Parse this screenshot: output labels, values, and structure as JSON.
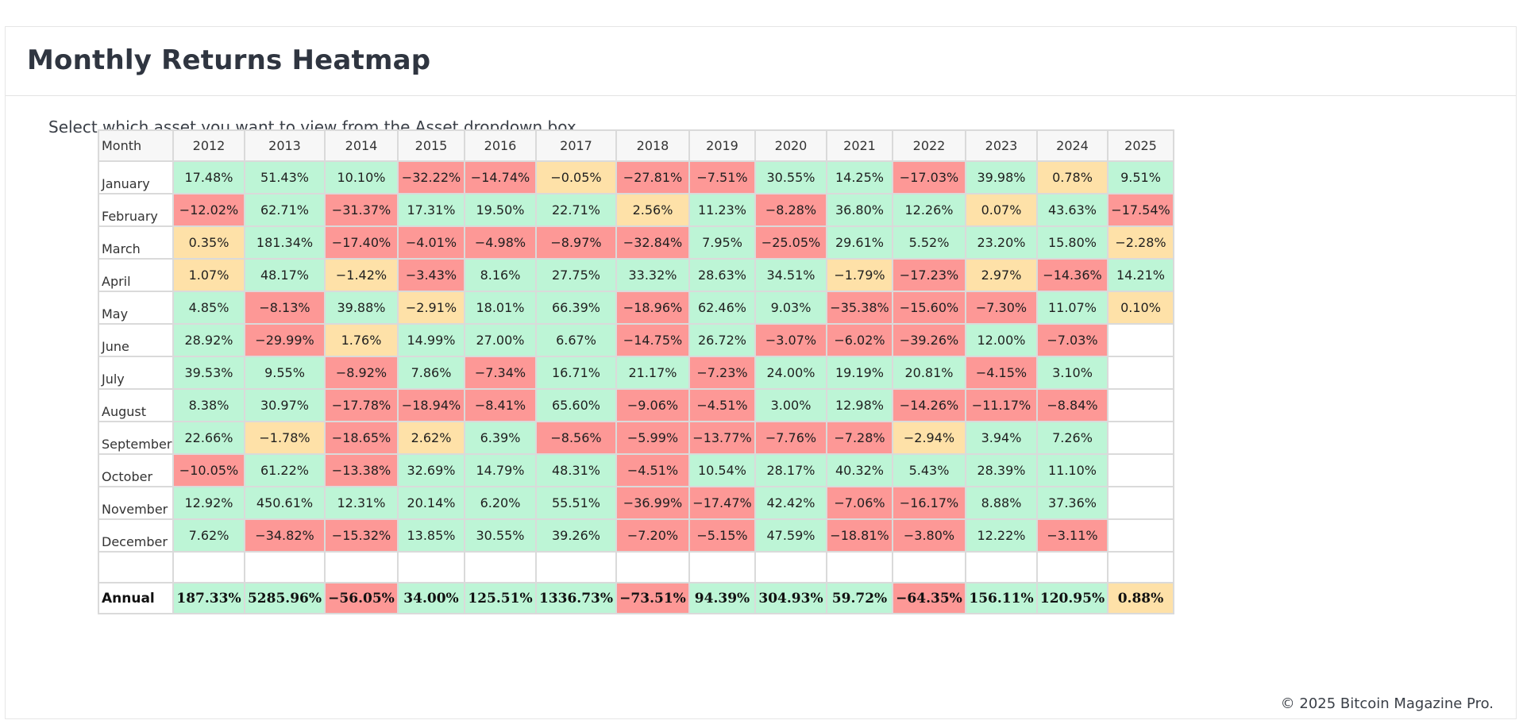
{
  "page": {
    "title": "Monthly Returns Heatmap",
    "instructions": "Select which asset you want to view from the Asset dropdown box.",
    "footer": "© 2025 Bitcoin Magazine Pro."
  },
  "colors": {
    "positive": "#bdf5d6",
    "negative": "#fd9896",
    "near_zero": "#fee1a8",
    "empty": "#ffffff",
    "grid_border": "#dadada"
  },
  "chart_data": {
    "type": "heatmap",
    "row_header": "Month",
    "years": [
      "2012",
      "2013",
      "2014",
      "2015",
      "2016",
      "2017",
      "2018",
      "2019",
      "2020",
      "2021",
      "2022",
      "2023",
      "2024",
      "2025"
    ],
    "rows": [
      {
        "month": "January",
        "values": [
          "17.48%",
          "51.43%",
          "10.10%",
          "−32.22%",
          "−14.74%",
          "−0.05%",
          "−27.81%",
          "−7.51%",
          "30.55%",
          "14.25%",
          "−17.03%",
          "39.98%",
          "0.78%",
          "9.51%"
        ],
        "levels": [
          "pos",
          "pos",
          "pos",
          "neg",
          "neg",
          "flat",
          "neg",
          "neg",
          "pos",
          "pos",
          "neg",
          "pos",
          "flat",
          "pos"
        ]
      },
      {
        "month": "February",
        "values": [
          "−12.02%",
          "62.71%",
          "−31.37%",
          "17.31%",
          "19.50%",
          "22.71%",
          "2.56%",
          "11.23%",
          "−8.28%",
          "36.80%",
          "12.26%",
          "0.07%",
          "43.63%",
          "−17.54%"
        ],
        "levels": [
          "neg",
          "pos",
          "neg",
          "pos",
          "pos",
          "pos",
          "flat",
          "pos",
          "neg",
          "pos",
          "pos",
          "flat",
          "pos",
          "neg"
        ]
      },
      {
        "month": "March",
        "values": [
          "0.35%",
          "181.34%",
          "−17.40%",
          "−4.01%",
          "−4.98%",
          "−8.97%",
          "−32.84%",
          "7.95%",
          "−25.05%",
          "29.61%",
          "5.52%",
          "23.20%",
          "15.80%",
          "−2.28%"
        ],
        "levels": [
          "flat",
          "pos",
          "neg",
          "neg",
          "neg",
          "neg",
          "neg",
          "pos",
          "neg",
          "pos",
          "pos",
          "pos",
          "pos",
          "flat"
        ]
      },
      {
        "month": "April",
        "values": [
          "1.07%",
          "48.17%",
          "−1.42%",
          "−3.43%",
          "8.16%",
          "27.75%",
          "33.32%",
          "28.63%",
          "34.51%",
          "−1.79%",
          "−17.23%",
          "2.97%",
          "−14.36%",
          "14.21%"
        ],
        "levels": [
          "flat",
          "pos",
          "flat",
          "neg",
          "pos",
          "pos",
          "pos",
          "pos",
          "pos",
          "flat",
          "neg",
          "flat",
          "neg",
          "pos"
        ]
      },
      {
        "month": "May",
        "values": [
          "4.85%",
          "−8.13%",
          "39.88%",
          "−2.91%",
          "18.01%",
          "66.39%",
          "−18.96%",
          "62.46%",
          "9.03%",
          "−35.38%",
          "−15.60%",
          "−7.30%",
          "11.07%",
          "0.10%"
        ],
        "levels": [
          "pos",
          "neg",
          "pos",
          "flat",
          "pos",
          "pos",
          "neg",
          "pos",
          "pos",
          "neg",
          "neg",
          "neg",
          "pos",
          "flat"
        ]
      },
      {
        "month": "June",
        "values": [
          "28.92%",
          "−29.99%",
          "1.76%",
          "14.99%",
          "27.00%",
          "6.67%",
          "−14.75%",
          "26.72%",
          "−3.07%",
          "−6.02%",
          "−39.26%",
          "12.00%",
          "−7.03%",
          ""
        ],
        "levels": [
          "pos",
          "neg",
          "flat",
          "pos",
          "pos",
          "pos",
          "neg",
          "pos",
          "neg",
          "neg",
          "neg",
          "pos",
          "neg",
          "empty"
        ]
      },
      {
        "month": "July",
        "values": [
          "39.53%",
          "9.55%",
          "−8.92%",
          "7.86%",
          "−7.34%",
          "16.71%",
          "21.17%",
          "−7.23%",
          "24.00%",
          "19.19%",
          "20.81%",
          "−4.15%",
          "3.10%",
          ""
        ],
        "levels": [
          "pos",
          "pos",
          "neg",
          "pos",
          "neg",
          "pos",
          "pos",
          "neg",
          "pos",
          "pos",
          "pos",
          "neg",
          "pos",
          "empty"
        ]
      },
      {
        "month": "August",
        "values": [
          "8.38%",
          "30.97%",
          "−17.78%",
          "−18.94%",
          "−8.41%",
          "65.60%",
          "−9.06%",
          "−4.51%",
          "3.00%",
          "12.98%",
          "−14.26%",
          "−11.17%",
          "−8.84%",
          ""
        ],
        "levels": [
          "pos",
          "pos",
          "neg",
          "neg",
          "neg",
          "pos",
          "neg",
          "neg",
          "pos",
          "pos",
          "neg",
          "neg",
          "neg",
          "empty"
        ]
      },
      {
        "month": "September",
        "values": [
          "22.66%",
          "−1.78%",
          "−18.65%",
          "2.62%",
          "6.39%",
          "−8.56%",
          "−5.99%",
          "−13.77%",
          "−7.76%",
          "−7.28%",
          "−2.94%",
          "3.94%",
          "7.26%",
          ""
        ],
        "levels": [
          "pos",
          "flat",
          "neg",
          "flat",
          "pos",
          "neg",
          "neg",
          "neg",
          "neg",
          "neg",
          "flat",
          "pos",
          "pos",
          "empty"
        ]
      },
      {
        "month": "October",
        "values": [
          "−10.05%",
          "61.22%",
          "−13.38%",
          "32.69%",
          "14.79%",
          "48.31%",
          "−4.51%",
          "10.54%",
          "28.17%",
          "40.32%",
          "5.43%",
          "28.39%",
          "11.10%",
          ""
        ],
        "levels": [
          "neg",
          "pos",
          "neg",
          "pos",
          "pos",
          "pos",
          "neg",
          "pos",
          "pos",
          "pos",
          "pos",
          "pos",
          "pos",
          "empty"
        ]
      },
      {
        "month": "November",
        "values": [
          "12.92%",
          "450.61%",
          "12.31%",
          "20.14%",
          "6.20%",
          "55.51%",
          "−36.99%",
          "−17.47%",
          "42.42%",
          "−7.06%",
          "−16.17%",
          "8.88%",
          "37.36%",
          ""
        ],
        "levels": [
          "pos",
          "pos",
          "pos",
          "pos",
          "pos",
          "pos",
          "neg",
          "neg",
          "pos",
          "neg",
          "neg",
          "pos",
          "pos",
          "empty"
        ]
      },
      {
        "month": "December",
        "values": [
          "7.62%",
          "−34.82%",
          "−15.32%",
          "13.85%",
          "30.55%",
          "39.26%",
          "−7.20%",
          "−5.15%",
          "47.59%",
          "−18.81%",
          "−3.80%",
          "12.22%",
          "−3.11%",
          ""
        ],
        "levels": [
          "pos",
          "neg",
          "neg",
          "pos",
          "pos",
          "pos",
          "neg",
          "neg",
          "pos",
          "neg",
          "neg",
          "pos",
          "neg",
          "empty"
        ]
      }
    ],
    "annual": {
      "label": "Annual",
      "values": [
        "187.33%",
        "5285.96%",
        "−56.05%",
        "34.00%",
        "125.51%",
        "1336.73%",
        "−73.51%",
        "94.39%",
        "304.93%",
        "59.72%",
        "−64.35%",
        "156.11%",
        "120.95%",
        "0.88%"
      ],
      "levels": [
        "pos",
        "pos",
        "neg",
        "pos",
        "pos",
        "pos",
        "neg",
        "pos",
        "pos",
        "pos",
        "neg",
        "pos",
        "pos",
        "flat"
      ]
    }
  }
}
